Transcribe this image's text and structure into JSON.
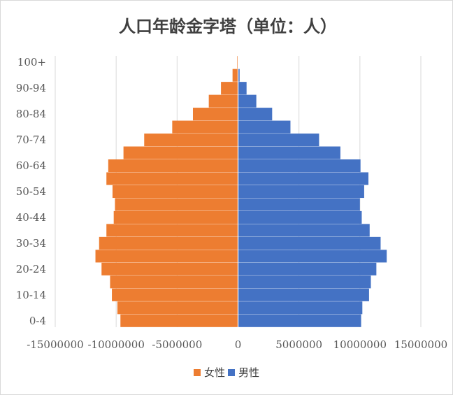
{
  "chart_data": {
    "type": "bar",
    "orientation": "horizontal",
    "title": "人口年龄金字塔（单位：人）",
    "categories": [
      "0-4",
      "5-9",
      "10-14",
      "15-19",
      "20-24",
      "25-29",
      "30-34",
      "35-39",
      "40-44",
      "45-49",
      "50-54",
      "55-59",
      "60-64",
      "65-69",
      "70-74",
      "75-79",
      "80-84",
      "85-89",
      "90-94",
      "95-99",
      "100+"
    ],
    "category_labels": [
      "0-4",
      "",
      "10-14",
      "",
      "20-24",
      "",
      "30-34",
      "",
      "40-44",
      "",
      "50-54",
      "",
      "60-64",
      "",
      "70-74",
      "",
      "80-84",
      "",
      "90-94",
      "",
      "100+"
    ],
    "series": [
      {
        "name": "女性",
        "color": "#ED7D31",
        "values": [
          -9650000,
          -9900000,
          -10350000,
          -10500000,
          -11200000,
          -11700000,
          -11400000,
          -10800000,
          -10200000,
          -10100000,
          -10300000,
          -10800000,
          -10650000,
          -9400000,
          -7700000,
          -5400000,
          -3700000,
          -2400000,
          -1400000,
          -450000,
          -70000
        ]
      },
      {
        "name": "男性",
        "color": "#4472C4",
        "values": [
          10100000,
          10200000,
          10750000,
          10900000,
          11350000,
          12200000,
          11700000,
          10800000,
          10150000,
          10000000,
          10350000,
          10700000,
          10050000,
          8400000,
          6650000,
          4300000,
          2800000,
          1500000,
          700000,
          130000,
          20000
        ]
      }
    ],
    "xlim": [
      -15000000,
      15000000
    ],
    "xticks": [
      -15000000,
      -10000000,
      -5000000,
      0,
      5000000,
      10000000,
      15000000
    ],
    "xtick_labels": [
      "-15000000",
      "-10000000",
      "-5000000",
      "0",
      "5000000",
      "10000000",
      "15000000"
    ],
    "grid": "vertical",
    "legend_position": "bottom"
  }
}
